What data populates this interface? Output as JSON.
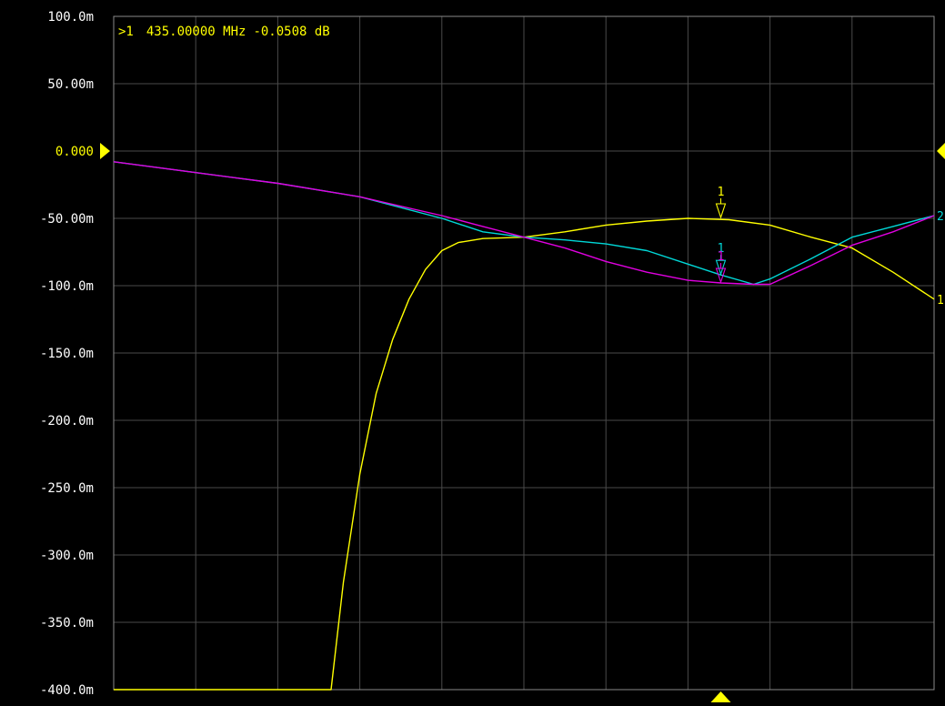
{
  "marker_readout": {
    "prefix": ">1",
    "frequency": "435.00000 MHz",
    "value": "-0.0508 dB"
  },
  "colors": {
    "background": "#000000",
    "grid": "#4a4a4a",
    "frame": "#8a8a8a",
    "trace1": "#ffff00",
    "trace2": "#00d8d8",
    "trace3": "#e000e0",
    "reference": "#ffff00"
  },
  "chart_data": {
    "type": "line",
    "title": "",
    "xlabel": "",
    "ylabel": "",
    "xlim": [
      0,
      10
    ],
    "ylim": [
      -400,
      100
    ],
    "y_unit": "m",
    "grid": true,
    "reference_level": 0,
    "y_tick_labels": [
      "100.0m",
      "50.00m",
      "0.000",
      "-50.00m",
      "-100.0m",
      "-150.0m",
      "-200.0m",
      "-250.0m",
      "-300.0m",
      "-350.0m",
      "-400.0m"
    ],
    "y_tick_values": [
      100,
      50,
      0,
      -50,
      -100,
      -150,
      -200,
      -250,
      -300,
      -350,
      -400
    ],
    "series": [
      {
        "color": "#ffff00",
        "end_label": "1",
        "x": [
          0,
          2.65,
          2.8,
          3.0,
          3.2,
          3.4,
          3.6,
          3.8,
          4.0,
          4.2,
          4.5,
          5.0,
          5.5,
          6.0,
          6.5,
          7.0,
          7.5,
          8.0,
          8.5,
          9.0,
          9.5,
          10.0
        ],
        "values": [
          -400,
          -400,
          -320,
          -240,
          -180,
          -140,
          -110,
          -88,
          -74,
          -68,
          -65,
          -64,
          -60,
          -55,
          -52,
          -50,
          -51,
          -55,
          -64,
          -72,
          -90,
          -110
        ]
      },
      {
        "color": "#00d8d8",
        "end_label": "2",
        "x": [
          0,
          1.0,
          2.0,
          3.0,
          4.0,
          4.5,
          5.0,
          5.5,
          6.0,
          6.5,
          7.0,
          7.4,
          7.8,
          8.0,
          8.5,
          9.0,
          9.5,
          10.0
        ],
        "values": [
          -8,
          -16,
          -24,
          -34,
          -50,
          -60,
          -64,
          -66,
          -69,
          -74,
          -84,
          -92,
          -99,
          -95,
          -80,
          -64,
          -56,
          -48
        ]
      },
      {
        "color": "#e000e0",
        "x": [
          0,
          1.0,
          2.0,
          3.0,
          4.0,
          4.5,
          5.0,
          5.5,
          6.0,
          6.5,
          7.0,
          7.4,
          7.8,
          8.0,
          8.5,
          9.0,
          9.5,
          10.0
        ],
        "values": [
          -8,
          -16,
          -24,
          -34,
          -48,
          -56,
          -64,
          -72,
          -82,
          -90,
          -96,
          -98,
          -99,
          -99,
          -85,
          -70,
          -60,
          -48
        ]
      }
    ],
    "markers": [
      {
        "label": "1",
        "x": 7.4,
        "y": -50,
        "color": "#ffff00"
      },
      {
        "label": "1",
        "x": 7.4,
        "y": -92,
        "color": "#00d8d8"
      },
      {
        "label": "1",
        "x": 7.4,
        "y": -98,
        "color": "#e000e0"
      }
    ],
    "stimulus_marker_x": 7.4
  }
}
